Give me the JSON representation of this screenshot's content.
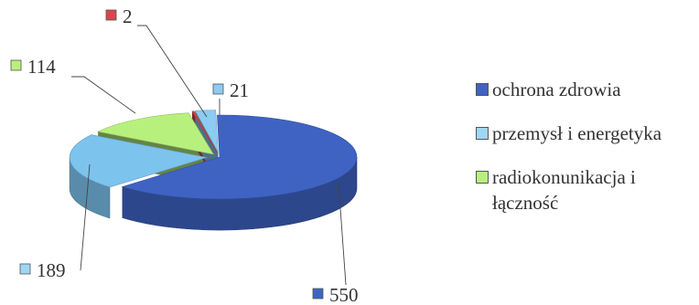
{
  "chart_data": {
    "type": "pie",
    "style": "3d-exploded",
    "slices": [
      {
        "label": "ochrona zdrowia",
        "value": 550,
        "color": "#3f63c2"
      },
      {
        "label": "przemysł i energetyka",
        "value": 189,
        "color": "#7cc3ee"
      },
      {
        "label": "radiokonunikacja i łączność",
        "value": 114,
        "color": "#b8f07e"
      },
      {
        "label": "",
        "value": 2,
        "color": "#d9474a"
      },
      {
        "label": "",
        "value": 21,
        "color": "#8ccbf2"
      }
    ],
    "legend": {
      "position": "right",
      "entries": [
        "ochrona zdrowia",
        "przemysł i energetyka",
        "radiokonunikacja i łączność"
      ]
    },
    "data_labels": [
      "550",
      "189",
      "114",
      "2",
      "21"
    ]
  }
}
